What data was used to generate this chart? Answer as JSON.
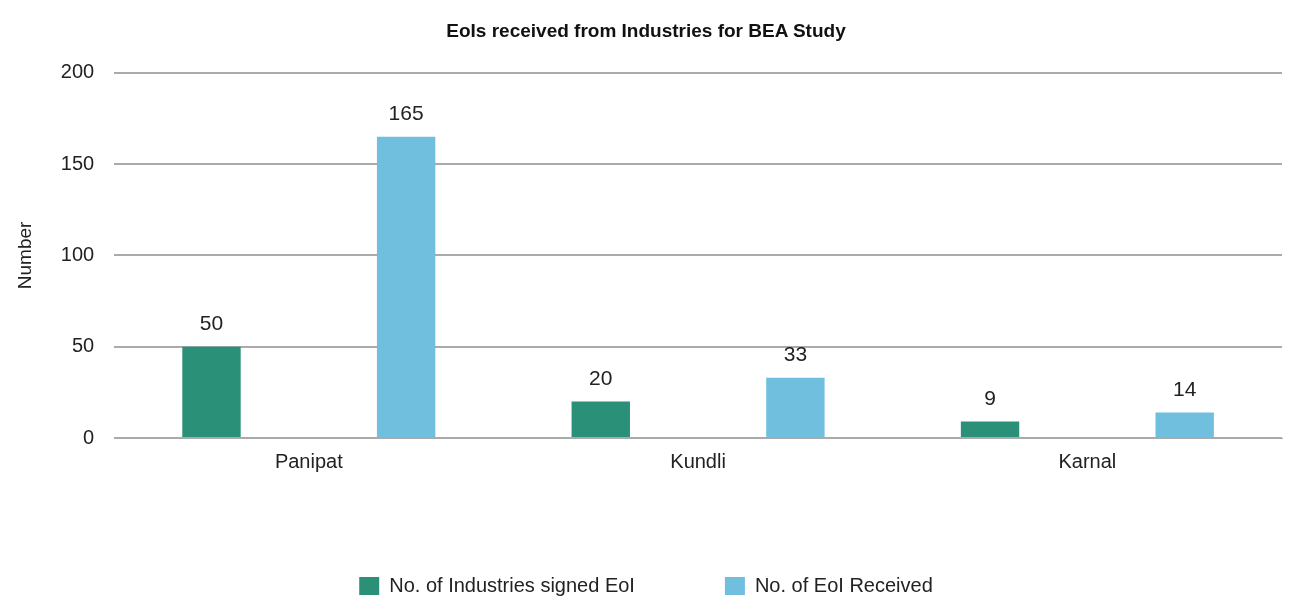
{
  "chart_data": {
    "type": "bar",
    "title": "EoIs received from Industries for BEA Study",
    "ylabel": "Number",
    "categories": [
      "Panipat",
      "Kundli",
      "Karnal"
    ],
    "series": [
      {
        "name": "No. of Industries signed EoI",
        "color": "#2a9077",
        "values": [
          50,
          20,
          9
        ]
      },
      {
        "name": "No. of EoI Received",
        "color": "#70bfdf",
        "values": [
          165,
          33,
          14
        ]
      }
    ],
    "ylim": [
      0,
      200
    ],
    "yticks": [
      0,
      50,
      100,
      150,
      200
    ],
    "grid": "y",
    "legend": "bottom",
    "data_labels": true
  }
}
